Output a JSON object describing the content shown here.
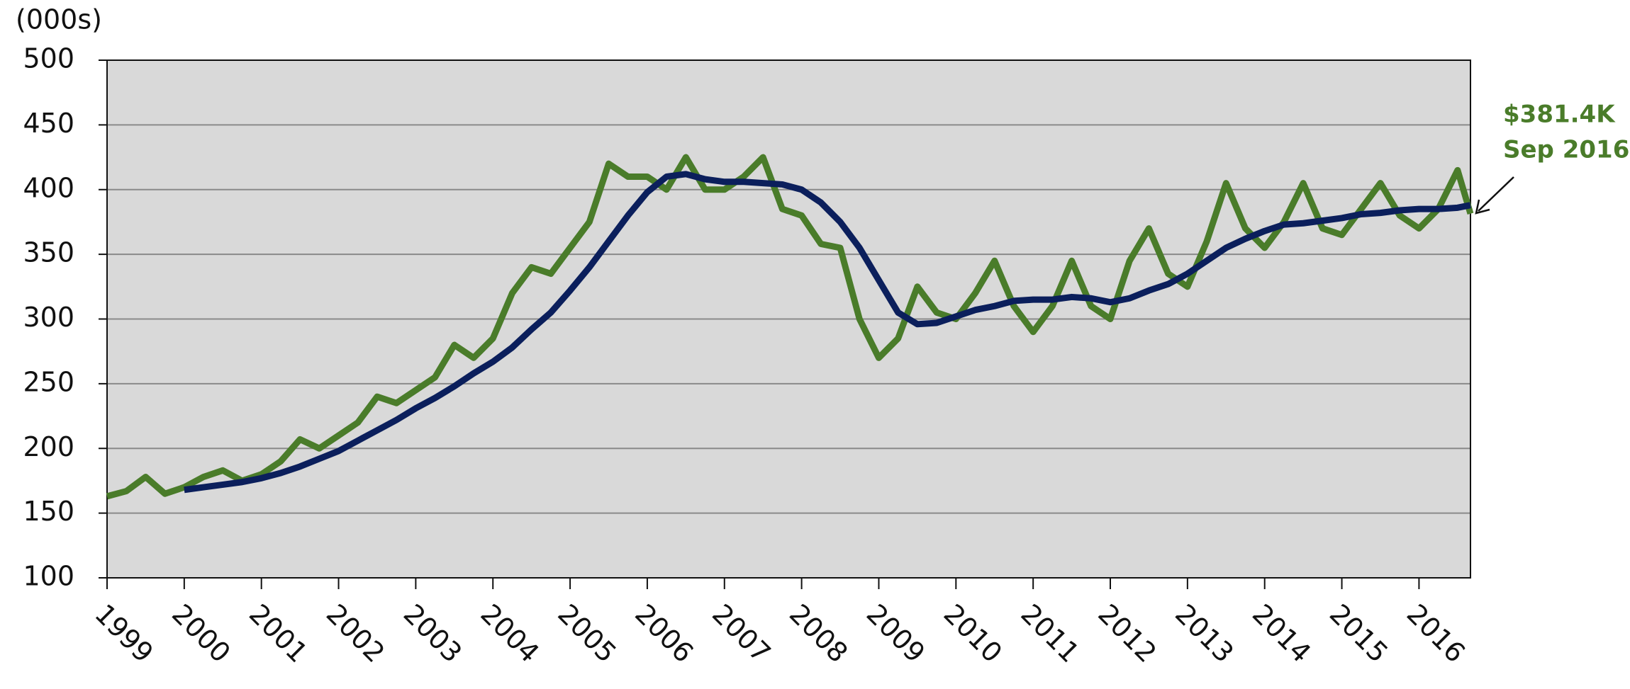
{
  "chart_data": {
    "type": "line",
    "y_label": "(000s)",
    "annotation": [
      "$381.4K",
      "Sep 2016"
    ],
    "x": [
      1999,
      1999.25,
      1999.5,
      1999.75,
      2000,
      2000.25,
      2000.5,
      2000.75,
      2001,
      2001.25,
      2001.5,
      2001.75,
      2002,
      2002.25,
      2002.5,
      2002.75,
      2003,
      2003.25,
      2003.5,
      2003.75,
      2004,
      2004.25,
      2004.5,
      2004.75,
      2005,
      2005.25,
      2005.5,
      2005.75,
      2006,
      2006.25,
      2006.5,
      2006.75,
      2007,
      2007.25,
      2007.5,
      2007.75,
      2008,
      2008.25,
      2008.5,
      2008.75,
      2009,
      2009.25,
      2009.5,
      2009.75,
      2010,
      2010.25,
      2010.5,
      2010.75,
      2011,
      2011.25,
      2011.5,
      2011.75,
      2012,
      2012.25,
      2012.5,
      2012.75,
      2013,
      2013.25,
      2013.5,
      2013.75,
      2014,
      2014.25,
      2014.5,
      2014.75,
      2015,
      2015.25,
      2015.5,
      2015.75,
      2016,
      2016.25,
      2016.5,
      2016.667
    ],
    "series": [
      {
        "color": "#4a7c2a",
        "values": [
          163,
          167,
          178,
          165,
          170,
          178,
          183,
          175,
          180,
          190,
          207,
          200,
          210,
          220,
          240,
          235,
          245,
          255,
          280,
          270,
          285,
          320,
          340,
          335,
          355,
          375,
          420,
          410,
          410,
          400,
          425,
          400,
          400,
          410,
          425,
          385,
          380,
          358,
          355,
          300,
          270,
          285,
          325,
          305,
          300,
          320,
          345,
          310,
          290,
          310,
          345,
          310,
          300,
          345,
          370,
          335,
          325,
          360,
          405,
          370,
          355,
          375,
          405,
          370,
          365,
          385,
          405,
          380,
          370,
          385,
          415,
          381.4
        ]
      },
      {
        "color": "#0b1f5c",
        "values": [
          null,
          null,
          null,
          null,
          168,
          170,
          172,
          174,
          177,
          181,
          186,
          192,
          198,
          206,
          214,
          222,
          231,
          239,
          248,
          258,
          267,
          278,
          292,
          305,
          322,
          340,
          360,
          380,
          398,
          410,
          412,
          408,
          406,
          406,
          405,
          404,
          400,
          390,
          375,
          355,
          330,
          305,
          296,
          297,
          302,
          307,
          310,
          314,
          315,
          315,
          317,
          316,
          313,
          316,
          322,
          327,
          335,
          345,
          355,
          362,
          368,
          373,
          374,
          376,
          378,
          381,
          382,
          384,
          385,
          385,
          386,
          388
        ]
      }
    ],
    "xlim": [
      1999,
      2016.667
    ],
    "xticks": [
      1999,
      2000,
      2001,
      2002,
      2003,
      2004,
      2005,
      2006,
      2007,
      2008,
      2009,
      2010,
      2011,
      2012,
      2013,
      2014,
      2015,
      2016
    ],
    "ylim": [
      100,
      500
    ],
    "yticks": [
      100,
      150,
      200,
      250,
      300,
      350,
      400,
      450,
      500
    ],
    "grid": true,
    "plot_background": "#d9d9d9"
  }
}
